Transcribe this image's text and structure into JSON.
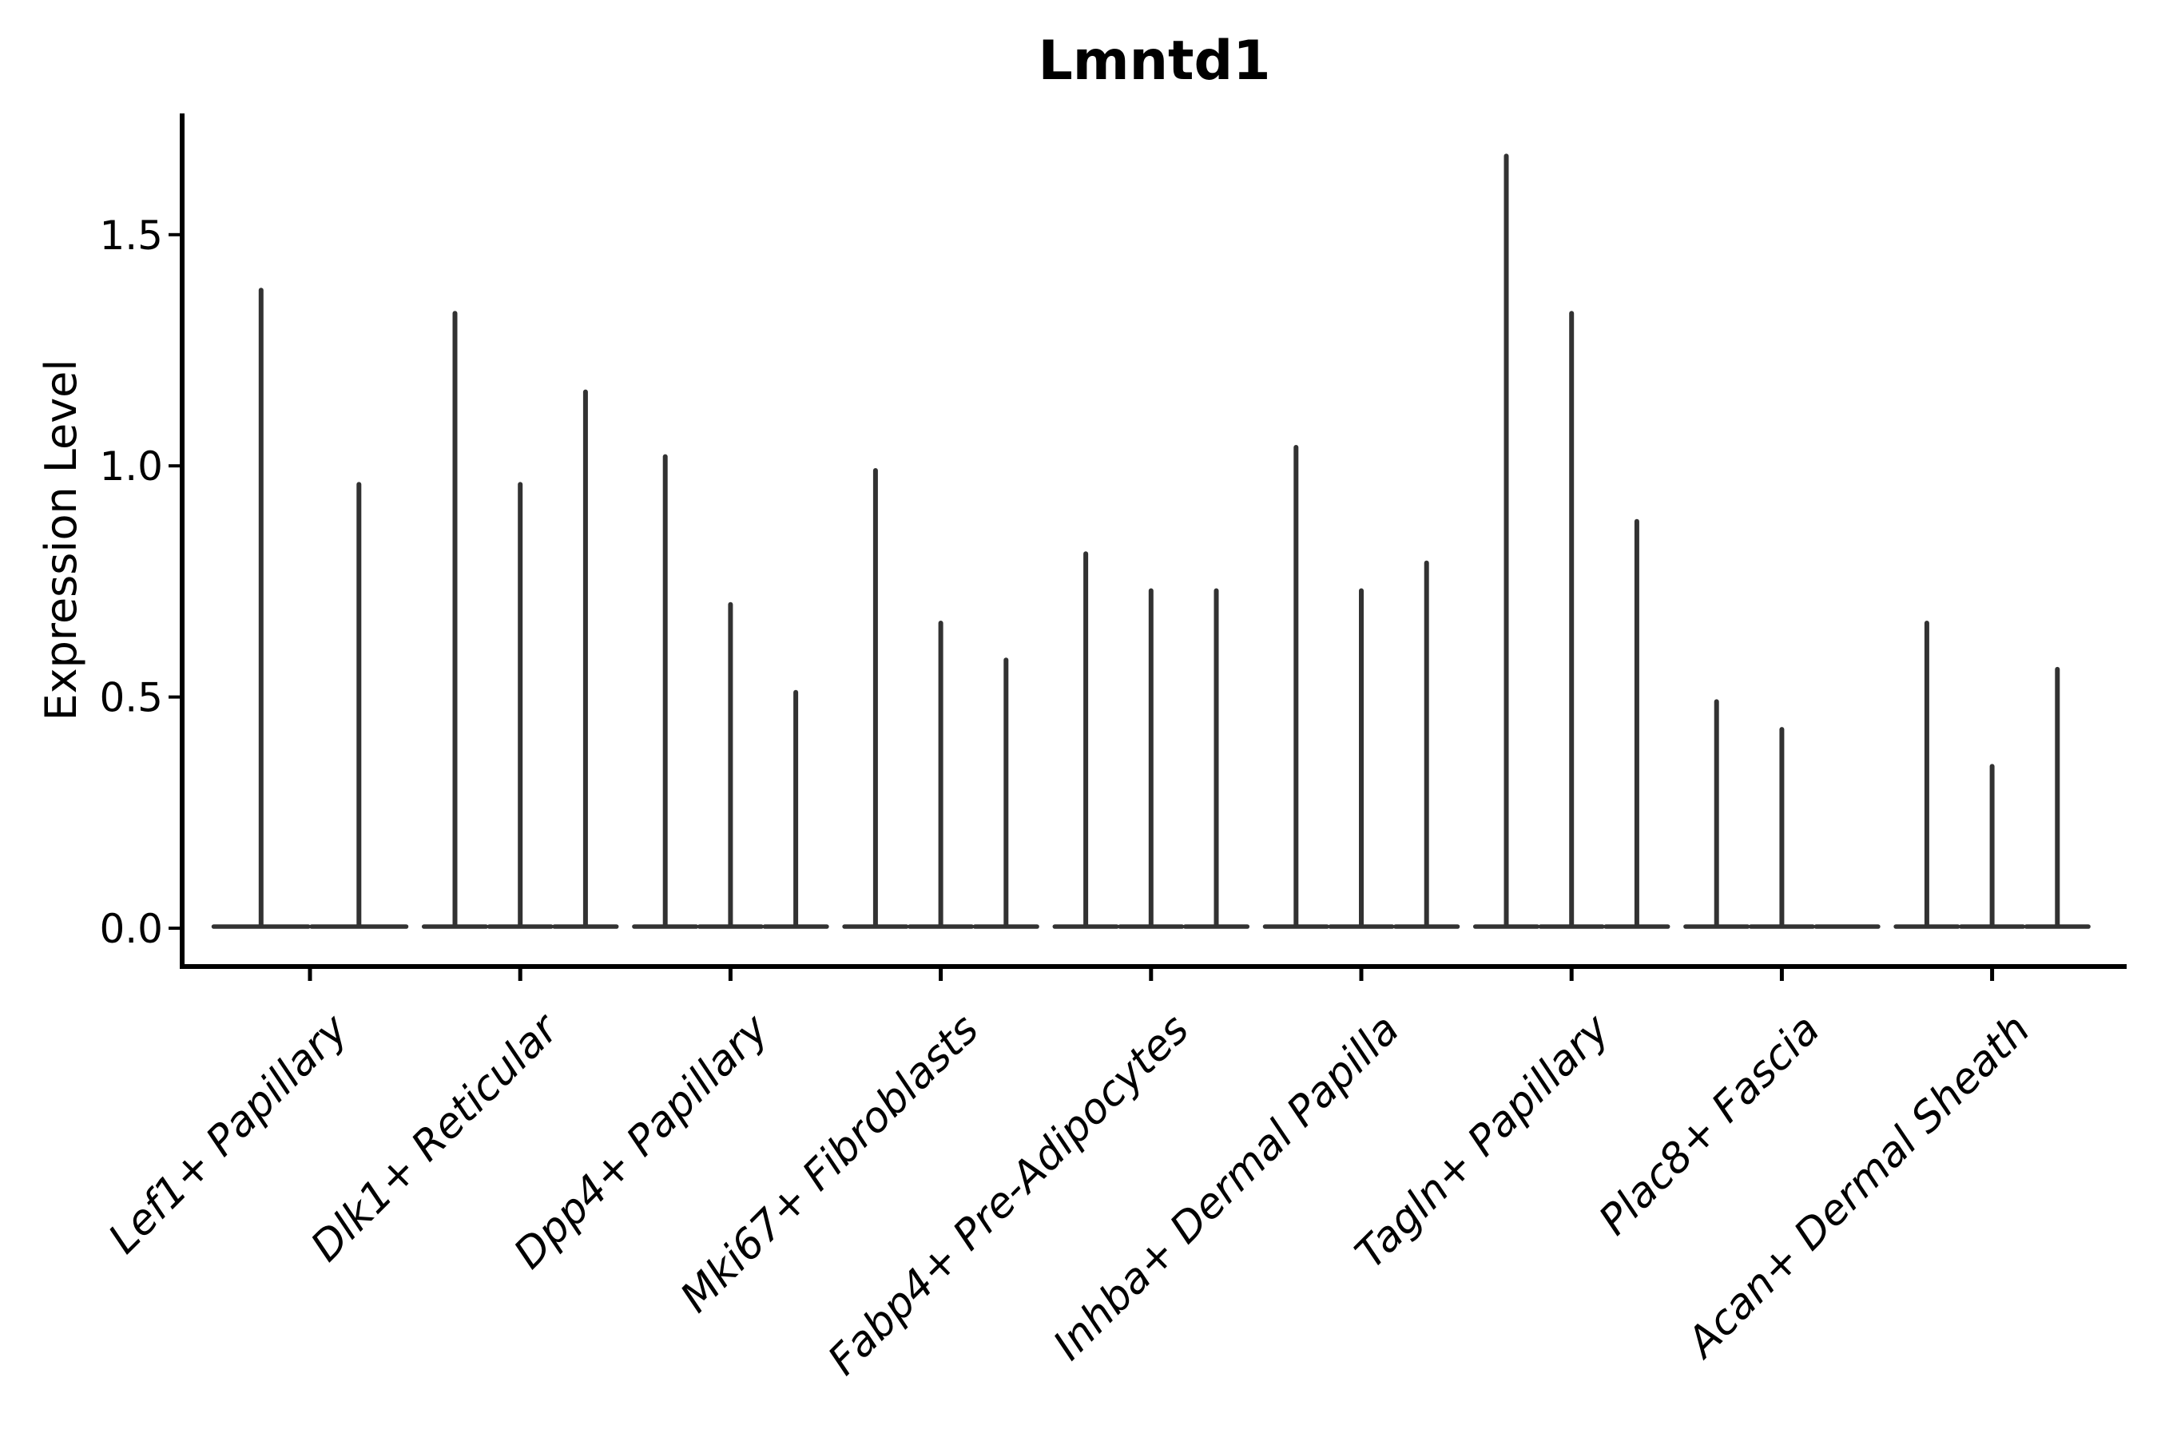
{
  "chart_data": {
    "type": "violin",
    "title": "Lmntd1",
    "ylabel": "Expression Level",
    "xlabel": "",
    "ylim": [
      -0.09,
      1.76
    ],
    "yticks": [
      0.0,
      0.5,
      1.0,
      1.5
    ],
    "ytick_labels": [
      "0.0",
      "0.5",
      "1.0",
      "1.5"
    ],
    "grid": false,
    "legend": false,
    "baseline_value": 0.0,
    "categories": [
      "Lef1+ Papillary",
      "Dlk1+ Reticular",
      "Dpp4+ Papillary",
      "Mki67+ Fibroblasts",
      "Fabp4+ Pre-Adipocytes",
      "Inhba+ Dermal Papilla",
      "Tagln+ Papillary",
      "Plac8+ Fascia",
      "Acan+ Dermal Sheath"
    ],
    "groups": [
      {
        "category": "Lef1+ Papillary",
        "violin_max_expression": [
          1.38,
          0.96
        ]
      },
      {
        "category": "Dlk1+ Reticular",
        "violin_max_expression": [
          1.33,
          0.96,
          1.16
        ]
      },
      {
        "category": "Dpp4+ Papillary",
        "violin_max_expression": [
          1.02,
          0.7,
          0.51
        ]
      },
      {
        "category": "Mki67+ Fibroblasts",
        "violin_max_expression": [
          0.99,
          0.66,
          0.58
        ]
      },
      {
        "category": "Fabp4+ Pre-Adipocytes",
        "violin_max_expression": [
          0.81,
          0.73,
          0.73
        ]
      },
      {
        "category": "Inhba+ Dermal Papilla",
        "violin_max_expression": [
          1.04,
          0.73,
          0.79
        ]
      },
      {
        "category": "Tagln+ Papillary",
        "violin_max_expression": [
          1.67,
          1.33,
          0.88
        ]
      },
      {
        "category": "Plac8+ Fascia",
        "violin_max_expression": [
          0.49,
          0.43,
          0.0
        ]
      },
      {
        "category": "Acan+ Dermal Sheath",
        "violin_max_expression": [
          0.66,
          0.35,
          0.56
        ]
      }
    ],
    "colors": {
      "violin_stroke": "#323232",
      "axis": "#000000",
      "text": "#000000",
      "background": "#ffffff"
    }
  }
}
